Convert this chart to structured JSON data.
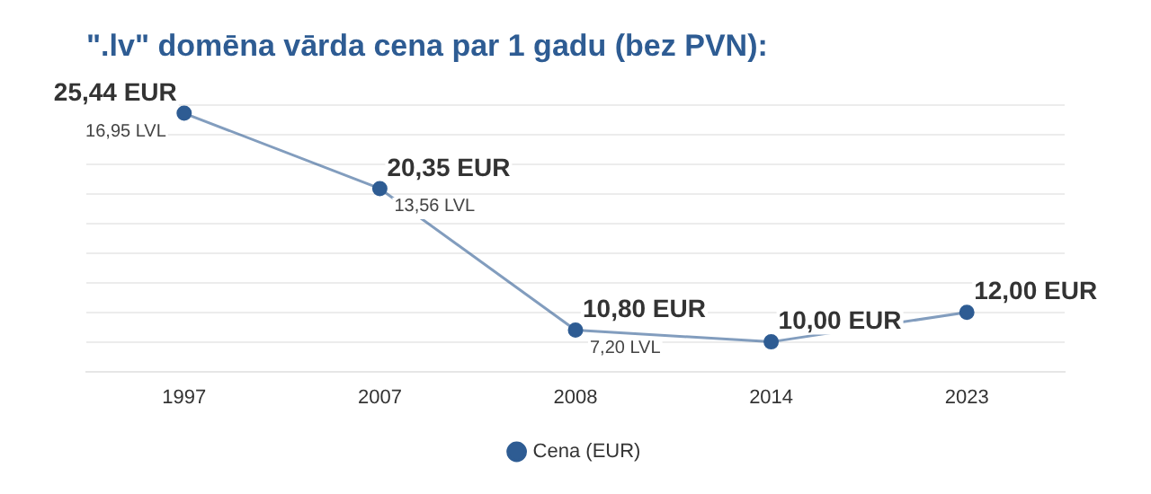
{
  "chart_data": {
    "type": "line",
    "title": "\".lv\" domēna vārda cena par 1 gadu (bez PVN):",
    "categories": [
      "1997",
      "2007",
      "2008",
      "2014",
      "2023"
    ],
    "series": [
      {
        "name": "Cena (EUR)",
        "color": "#2e5c93",
        "values": [
          25.44,
          20.35,
          10.8,
          10.0,
          12.0
        ],
        "value_labels": [
          "25,44 EUR",
          "20,35 EUR",
          "10,80 EUR",
          "10,00 EUR",
          "12,00 EUR"
        ]
      }
    ],
    "annotations": [
      {
        "text": "16,95 LVL",
        "x": "1997",
        "y": 25.44
      },
      {
        "text": "13,56 LVL",
        "x": "2007",
        "y": 20.35
      },
      {
        "text": "7,20 LVL",
        "x": "2008",
        "y": 10.8
      }
    ],
    "ylim": [
      8,
      26
    ],
    "yticks": [
      {
        "value": 8,
        "label": null
      },
      {
        "value": 10,
        "label": null
      },
      {
        "value": 12,
        "label": null
      },
      {
        "value": 14,
        "label": null
      },
      {
        "value": 16,
        "label": null
      },
      {
        "value": 18,
        "label": null
      },
      {
        "value": 20,
        "label": null
      },
      {
        "value": 22,
        "label": null
      },
      {
        "value": 24,
        "label": null
      },
      {
        "value": 26,
        "label": null
      }
    ],
    "grid": "y",
    "legend": "bottom",
    "marker": "circle",
    "line_style": "solid",
    "tick_labels": "x"
  }
}
